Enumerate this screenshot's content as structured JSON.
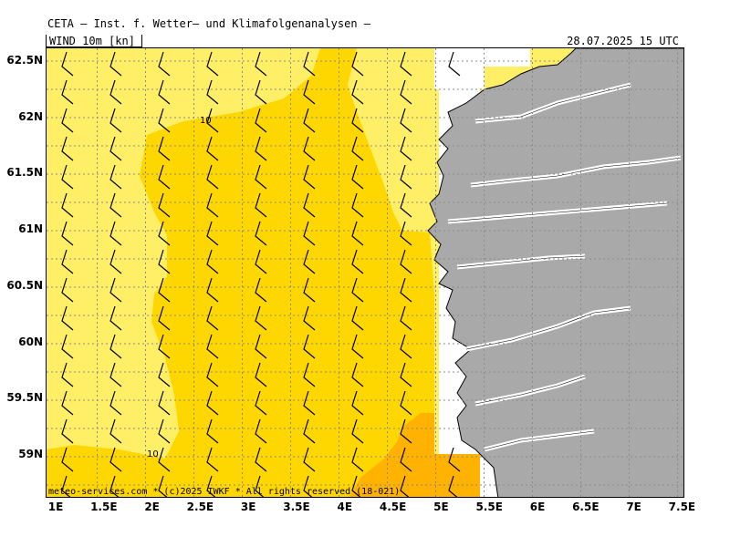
{
  "header": {
    "title": "CETA — Inst. f. Wetter— und Klimafolgenanalysen —",
    "variable": "WIND 10m [kn]",
    "valid_time": "28.07.2025 15 UTC"
  },
  "colors": {
    "light_yellow": "#FFEF66",
    "yellow": "#FFD700",
    "orange": "#FFB300",
    "land": "#A9A9A9",
    "grid": "#8a8a8a"
  },
  "contour_labels": [
    "10",
    "10"
  ],
  "y_axis_labels": [
    "62.5N",
    "62N",
    "61.5N",
    "61N",
    "60.5N",
    "60N",
    "59.5N",
    "59N"
  ],
  "x_axis_labels": [
    "1E",
    "1.5E",
    "2E",
    "2.5E",
    "3E",
    "3.5E",
    "4E",
    "4.5E",
    "5E",
    "5.5E",
    "6E",
    "6.5E",
    "7E",
    "7.5E"
  ],
  "footer": "meteo-services.com * (c)2025 IWKF * All rights reserved (18-021)"
}
